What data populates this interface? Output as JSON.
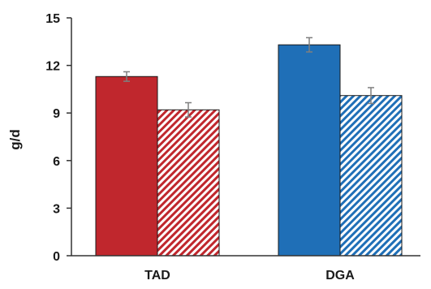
{
  "chart_data": {
    "type": "bar",
    "categories": [
      "TAD",
      "DGA"
    ],
    "series": [
      {
        "values": [
          11.3,
          13.3
        ],
        "errors": [
          0.3,
          0.45
        ],
        "fill": "solid"
      },
      {
        "values": [
          9.2,
          10.1
        ],
        "errors": [
          0.45,
          0.5
        ],
        "fill": "hatched"
      }
    ],
    "category_colors": [
      "#c0272d",
      "#1f6fb7"
    ],
    "error_bar_color": "#7f7f7f",
    "xlabel": "",
    "ylabel": "g/d",
    "ylim": [
      0,
      15
    ],
    "yticks": [
      "0",
      "3",
      "6",
      "9",
      "12",
      "15"
    ],
    "grid": false,
    "legend": "none"
  }
}
